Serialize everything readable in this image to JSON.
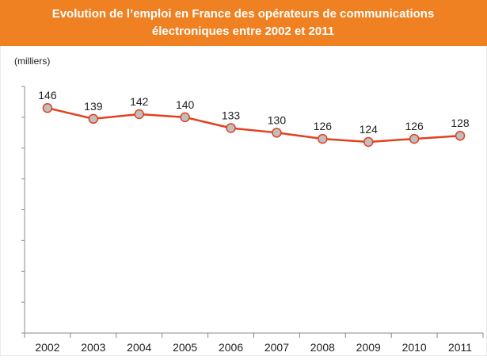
{
  "chart_data": {
    "type": "line",
    "title": "Evolution de l’emploi en France des opérateurs de communications électroniques entre 2002 et 2011",
    "title_lines": [
      "Evolution de l’emploi en France des opérateurs de communications",
      "électroniques entre 2002 et 2011"
    ],
    "y_label": "(milliers)",
    "categories": [
      "2002",
      "2003",
      "2004",
      "2005",
      "2006",
      "2007",
      "2008",
      "2009",
      "2010",
      "2011"
    ],
    "values": [
      146,
      139,
      142,
      140,
      133,
      130,
      126,
      124,
      126,
      128
    ],
    "color": "#e2401f",
    "marker_color": "#bfbfbf",
    "ylim": [
      0,
      160
    ],
    "yticks": [
      0,
      20,
      40,
      60,
      80,
      100,
      120,
      140,
      160
    ],
    "grid": false
  }
}
